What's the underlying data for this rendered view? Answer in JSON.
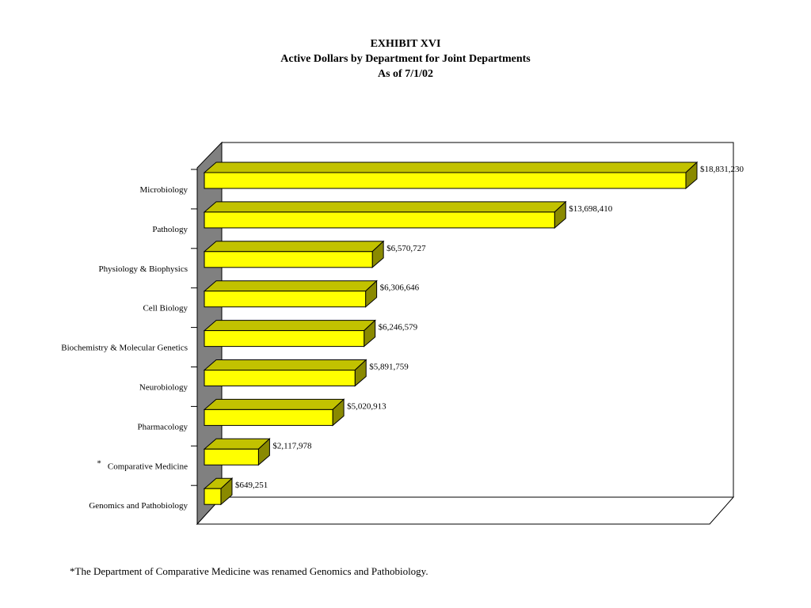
{
  "chart_data": {
    "type": "bar",
    "orientation": "horizontal",
    "three_d": true,
    "title": "EXHIBIT XVI",
    "subtitle": "Active Dollars by Department for Joint Departments",
    "subtitle2": "As of 7/1/02",
    "categories": [
      "Microbiology",
      "Pathology",
      "Physiology & Biophysics",
      "Cell Biology",
      "Biochemistry & Molecular Genetics",
      "Neurobiology",
      "Pharmacology",
      "Comparative Medicine",
      "Genomics and Pathobiology"
    ],
    "category_markers": [
      "",
      "",
      "",
      "",
      "",
      "",
      "",
      "*",
      ""
    ],
    "values": [
      18831230,
      13698410,
      6570727,
      6306646,
      6246579,
      5891759,
      5020913,
      2117978,
      649251
    ],
    "value_labels": [
      "$18,831,230",
      "$13,698,410",
      "$6,570,727",
      "$6,306,646",
      "$6,246,579",
      "$5,891,759",
      "$5,020,913",
      "$2,117,978",
      "$649,251"
    ],
    "xlim": [
      0,
      20000000
    ],
    "grid": false,
    "legend": "none",
    "colors": {
      "bar_front": "#ffff00",
      "bar_top": "#c2c200",
      "bar_side": "#8a8a00",
      "wall": "#808080"
    }
  },
  "footnote": "*The Department of Comparative Medicine was renamed Genomics and Pathobiology."
}
